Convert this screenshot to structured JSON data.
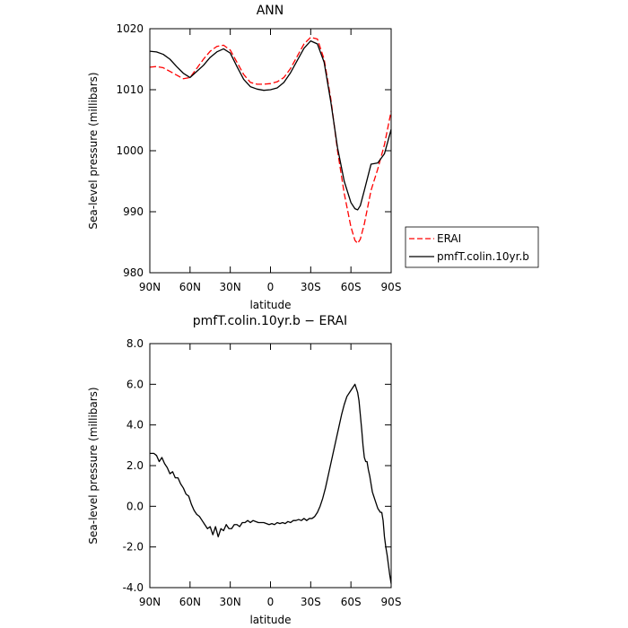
{
  "chart_data": [
    {
      "type": "line",
      "title": "ANN",
      "xlabel": "latitude",
      "ylabel": "Sea-level pressure (millibars)",
      "xlim": [
        90,
        -90
      ],
      "ylim": [
        980,
        1020
      ],
      "x_ticks": [
        90,
        60,
        30,
        0,
        -30,
        -60,
        -90
      ],
      "x_ticklabels": [
        "90N",
        "60N",
        "30N",
        "0",
        "30S",
        "60S",
        "90S"
      ],
      "y_ticks": [
        980,
        990,
        1000,
        1010,
        1020
      ],
      "y_ticklabels": [
        "980",
        "990",
        "1000",
        "1010",
        "1020"
      ],
      "legend": {
        "placement": "right"
      },
      "series": [
        {
          "name": "ERAI",
          "color": "#ff0000",
          "dash": "dashed",
          "x": [
            90,
            85,
            80,
            75,
            70,
            65,
            60,
            55,
            50,
            45,
            40,
            35,
            30,
            25,
            20,
            15,
            10,
            5,
            0,
            -5,
            -10,
            -15,
            -20,
            -25,
            -30,
            -35,
            -40,
            -45,
            -50,
            -55,
            -60,
            -63,
            -65,
            -67,
            -70,
            -75,
            -80,
            -85,
            -90
          ],
          "values": [
            1013.7,
            1013.8,
            1013.6,
            1013.0,
            1012.4,
            1011.8,
            1012.0,
            1013.5,
            1015.0,
            1016.3,
            1017.1,
            1017.3,
            1016.5,
            1014.5,
            1012.5,
            1011.2,
            1010.9,
            1010.9,
            1011.0,
            1011.3,
            1012.0,
            1013.5,
            1015.5,
            1017.5,
            1018.6,
            1018.3,
            1015.0,
            1008.5,
            1000.0,
            993.0,
            987.5,
            985.3,
            984.8,
            985.5,
            988.0,
            993.5,
            997.0,
            1001.0,
            1006.5
          ]
        },
        {
          "name": "pmfT.colin.10yr.b",
          "color": "#000000",
          "dash": "solid",
          "x": [
            90,
            85,
            80,
            75,
            70,
            65,
            60,
            55,
            50,
            45,
            40,
            35,
            30,
            25,
            20,
            15,
            10,
            5,
            0,
            -5,
            -10,
            -15,
            -20,
            -25,
            -30,
            -35,
            -40,
            -45,
            -50,
            -55,
            -60,
            -63,
            -65,
            -67,
            -70,
            -75,
            -80,
            -85,
            -90
          ],
          "values": [
            1016.3,
            1016.2,
            1015.8,
            1015.0,
            1013.8,
            1012.7,
            1012.0,
            1013.0,
            1014.0,
            1015.3,
            1016.2,
            1016.7,
            1016.0,
            1013.8,
            1011.7,
            1010.5,
            1010.1,
            1009.9,
            1010.0,
            1010.3,
            1011.2,
            1012.8,
            1014.8,
            1016.8,
            1018.0,
            1017.5,
            1014.5,
            1008.0,
            1000.5,
            995.0,
            991.5,
            990.5,
            990.3,
            991.0,
            993.5,
            997.8,
            998.0,
            999.5,
            1003.5
          ]
        }
      ]
    },
    {
      "type": "line",
      "title": "pmfT.colin.10yr.b  −  ERAI",
      "xlabel": "latitude",
      "ylabel": "Sea-level pressure (millibars)",
      "xlim": [
        90,
        -90
      ],
      "ylim": [
        -4,
        8
      ],
      "x_ticks": [
        90,
        60,
        30,
        0,
        -30,
        -60,
        -90
      ],
      "x_ticklabels": [
        "90N",
        "60N",
        "30N",
        "0",
        "30S",
        "60S",
        "90S"
      ],
      "y_ticks": [
        -4,
        -2,
        0,
        2,
        4,
        6,
        8
      ],
      "y_ticklabels": [
        "-4.0",
        "-2.0",
        "0.0",
        "2.0",
        "4.0",
        "6.0",
        "8.0"
      ],
      "series": [
        {
          "color": "#000000",
          "dash": "solid",
          "x": [
            90,
            87,
            85,
            83,
            81,
            79,
            77,
            75,
            73,
            71,
            69,
            67,
            65,
            63,
            61,
            59,
            57,
            55,
            53,
            51,
            49,
            47,
            45,
            43,
            41,
            39,
            37,
            35,
            33,
            31,
            29,
            27,
            25,
            23,
            21,
            19,
            17,
            15,
            13,
            11,
            9,
            7,
            5,
            3,
            1,
            -1,
            -3,
            -5,
            -7,
            -9,
            -11,
            -13,
            -15,
            -17,
            -19,
            -21,
            -23,
            -25,
            -27,
            -29,
            -31,
            -33,
            -35,
            -37,
            -39,
            -41,
            -43,
            -45,
            -47,
            -49,
            -51,
            -53,
            -55,
            -57,
            -59,
            -61,
            -63,
            -65,
            -66,
            -67,
            -68,
            -69,
            -70,
            -71,
            -72,
            -73,
            -74,
            -75,
            -76,
            -77,
            -78,
            -79,
            -80,
            -81,
            -82,
            -83,
            -84,
            -85,
            -86,
            -87,
            -88,
            -89,
            -90
          ],
          "values": [
            2.6,
            2.6,
            2.5,
            2.2,
            2.4,
            2.1,
            1.9,
            1.6,
            1.7,
            1.4,
            1.4,
            1.1,
            0.9,
            0.6,
            0.5,
            0.1,
            -0.2,
            -0.4,
            -0.5,
            -0.7,
            -0.9,
            -1.1,
            -1.0,
            -1.4,
            -1.0,
            -1.5,
            -1.1,
            -1.2,
            -0.9,
            -1.1,
            -1.1,
            -0.9,
            -0.9,
            -1.0,
            -0.8,
            -0.8,
            -0.7,
            -0.8,
            -0.7,
            -0.75,
            -0.8,
            -0.8,
            -0.8,
            -0.85,
            -0.9,
            -0.85,
            -0.9,
            -0.8,
            -0.85,
            -0.8,
            -0.85,
            -0.75,
            -0.8,
            -0.7,
            -0.7,
            -0.65,
            -0.7,
            -0.6,
            -0.7,
            -0.6,
            -0.6,
            -0.5,
            -0.3,
            0.0,
            0.4,
            0.9,
            1.5,
            2.1,
            2.7,
            3.3,
            3.9,
            4.5,
            5.0,
            5.4,
            5.6,
            5.8,
            6.0,
            5.6,
            5.2,
            4.5,
            3.8,
            3.0,
            2.4,
            2.2,
            2.2,
            1.8,
            1.5,
            1.1,
            0.7,
            0.5,
            0.3,
            0.1,
            -0.1,
            -0.2,
            -0.3,
            -0.3,
            -0.7,
            -1.5,
            -2.0,
            -2.4,
            -2.9,
            -3.4,
            -3.8
          ]
        }
      ]
    }
  ]
}
